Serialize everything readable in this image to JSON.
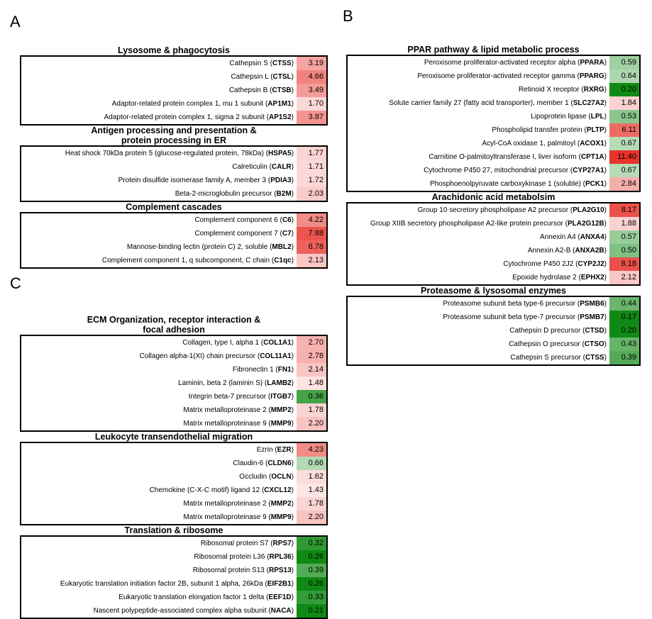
{
  "panels": [
    {
      "letter": "A",
      "sections": [
        {
          "title": "Lysosome & phagocytosis",
          "rows": [
            {
              "name": "Cathepsin S (",
              "gene": "CTSS",
              "value": 3.19
            },
            {
              "name": "Cathepsin L (",
              "gene": "CTSL",
              "value": 4.66
            },
            {
              "name": "Cathepsin B (",
              "gene": "CTSB",
              "value": 3.49
            },
            {
              "name": "Adaptor-related protein complex 1, mu 1 subunit (",
              "gene": "AP1M1",
              "value": 1.7
            },
            {
              "name": "Adaptor-related protein complex 1, sigma 2 subunit (",
              "gene": "AP1S2",
              "value": 3.87
            }
          ]
        },
        {
          "title": "Antigen processing and presentation &\nprotein processing in ER",
          "rows": [
            {
              "name": "Heat shock 70kDa protein 5 (glucose-regulated protein, 78kDa) (",
              "gene": "HSPA5",
              "value": 1.77
            },
            {
              "name": "Calreticulin (",
              "gene": "CALR",
              "value": 1.71
            },
            {
              "name": "Protein disulfide isomerase family A, member 3 (",
              "gene": "PDIA3",
              "value": 1.72
            },
            {
              "name": "Beta-2-microglobulin precursor (",
              "gene": "B2M",
              "value": 2.03
            }
          ]
        },
        {
          "title": "Complement cascades",
          "rows": [
            {
              "name": "Complement component 6 (",
              "gene": "C6",
              "value": 4.22
            },
            {
              "name": "Complement component 7 (",
              "gene": "C7",
              "value": 7.88
            },
            {
              "name": "Mannose-binding lectin (protein C) 2, soluble (",
              "gene": "MBL2",
              "value": 6.78
            },
            {
              "name": "Complement component 1, q subcomponent, C chain (",
              "gene": "C1qc",
              "value": 2.13
            }
          ]
        }
      ]
    },
    {
      "letter": "B",
      "sections": [
        {
          "title": "PPAR pathway & lipid metabolic process",
          "rows": [
            {
              "name": "Peroxisome proliferator-activated receptor alpha (",
              "gene": "PPARA",
              "value": 0.59
            },
            {
              "name": "Peroxisome proliferator-activated receptor gamma (",
              "gene": "PPARG",
              "value": 0.64
            },
            {
              "name": "Retinoid X receptor (",
              "gene": "RXRG",
              "value": 0.2
            },
            {
              "name": "Solute carrier family 27 (fatty acid transporter), member 1 (",
              "gene": "SLC27A2",
              "value": 1.84
            },
            {
              "name": "Lipoprotein lipase (",
              "gene": "LPL",
              "value": 0.53
            },
            {
              "name": "Phospholipid transfer protein (",
              "gene": "PLTP",
              "value": 6.11
            },
            {
              "name": "Acyl-CoA oxidase 1, palmitoyl (",
              "gene": "ACOX1",
              "value": 0.67
            },
            {
              "name": "Carnitine O-palmitoyltransferase I, liver isoform (",
              "gene": "CPT1A",
              "value": 11.4
            },
            {
              "name": "Cytochrome P450 27, mitochondrial precursor (",
              "gene": "CYP27A1",
              "value": 0.67
            },
            {
              "name": "Phosphoenolpyruvate carboxykinase 1 (soluble) (",
              "gene": "PCK1",
              "value": 2.84
            }
          ]
        },
        {
          "title": "Arachidonic acid metabolsim",
          "rows": [
            {
              "name": "Group 10 secretory phospholipase A2 precursor (",
              "gene": "PLA2G10",
              "value": 8.17
            },
            {
              "name": "Group XIIB secretory phospholipase A2-like protein precursor (",
              "gene": "PLA2G12B",
              "value": 1.88
            },
            {
              "name": "Annexin A4 (",
              "gene": "ANXA4",
              "value": 0.57
            },
            {
              "name": "Annexin A2-B (",
              "gene": "ANXA2B",
              "value": 0.5
            },
            {
              "name": "Cytochrome P450 2J2 (",
              "gene": "CYP2J2",
              "value": 8.18
            },
            {
              "name": "Epoxide hydrolase 2 (",
              "gene": "EPHX2",
              "value": 2.12
            }
          ]
        },
        {
          "title": "Proteasome & lysosomal enzymes",
          "rows": [
            {
              "name": "Proteasome subunit beta type-6 precursor (",
              "gene": "PSMB6",
              "value": 0.44
            },
            {
              "name": "Proteasome subunit beta type-7 precursor (",
              "gene": "PSMB7",
              "value": 0.17
            },
            {
              "name": "Cathepsin D precursor (",
              "gene": "CTSD",
              "value": 0.2
            },
            {
              "name": "Cathepsin O precursor (",
              "gene": "CTSO",
              "value": 0.43
            },
            {
              "name": "Cathepsin S precursor (",
              "gene": "CTSS",
              "value": 0.39
            }
          ]
        }
      ]
    },
    {
      "letter": "C",
      "sections": [
        {
          "title": "ECM Organization, receptor interaction &\nfocal adhesion",
          "rows": [
            {
              "name": "Collagen, type I, alpha 1 (",
              "gene": "COL1A1",
              "value": 2.7
            },
            {
              "name": "Collagen alpha-1(XI) chain precursor (",
              "gene": "COL11A1",
              "value": 2.78
            },
            {
              "name": "Fibronectin 1 (",
              "gene": "FN1",
              "value": 2.14
            },
            {
              "name": "Laminin, beta 2 (laminin S) (",
              "gene": "LAMB2",
              "value": 1.48
            },
            {
              "name": "Integrin beta-7 precursor (",
              "gene": "ITGB7",
              "value": 0.36
            },
            {
              "name": "Matrix metalloproteinase 2 (",
              "gene": "MMP2",
              "value": 1.78
            },
            {
              "name": "Matrix metalloproteinase 9 (",
              "gene": "MMP9",
              "value": 2.2
            }
          ]
        },
        {
          "title": "Leukocyte transendothelial migration",
          "rows": [
            {
              "name": "Ezrin (",
              "gene": "EZR",
              "value": 4.23
            },
            {
              "name": "Claudin-6 (",
              "gene": "CLDN6",
              "value": 0.66
            },
            {
              "name": "Occludin (",
              "gene": "OCLN",
              "value": 1.62
            },
            {
              "name": "Chemokine (C-X-C motif) ligand 12 (",
              "gene": "CXCL12",
              "value": 1.43
            },
            {
              "name": "Matrix metalloproteinase 2 (",
              "gene": "MMP2",
              "value": 1.78
            },
            {
              "name": "Matrix metalloproteinase 9 (",
              "gene": "MMP9",
              "value": 2.2
            }
          ]
        },
        {
          "title": "Translation & ribosome",
          "rows": [
            {
              "name": "Ribosomal protein S7 (",
              "gene": "RPS7",
              "value": 0.32
            },
            {
              "name": "Ribosomal protein L36 (",
              "gene": "RPL36",
              "value": 0.26
            },
            {
              "name": "Ribosomal protein S13 (",
              "gene": "RPS13",
              "value": 0.39
            },
            {
              "name": "Eukaryotic translation initiation factor 2B, subunit 1 alpha, 26kDa (",
              "gene": "EIF2B1",
              "value": 0.26
            },
            {
              "name": "Eukaryotic translation elongation factor 1 delta (",
              "gene": "EEF1D",
              "value": 0.33
            },
            {
              "name": "Nascent polypeptide-associated complex alpha subunit (",
              "gene": "NACA",
              "value": 0.21
            }
          ]
        }
      ]
    }
  ],
  "chart_data": {
    "type": "table",
    "colors": {
      "up": "#e8322a",
      "down": "#0f8a14",
      "neutral": "#ffffff"
    }
  }
}
